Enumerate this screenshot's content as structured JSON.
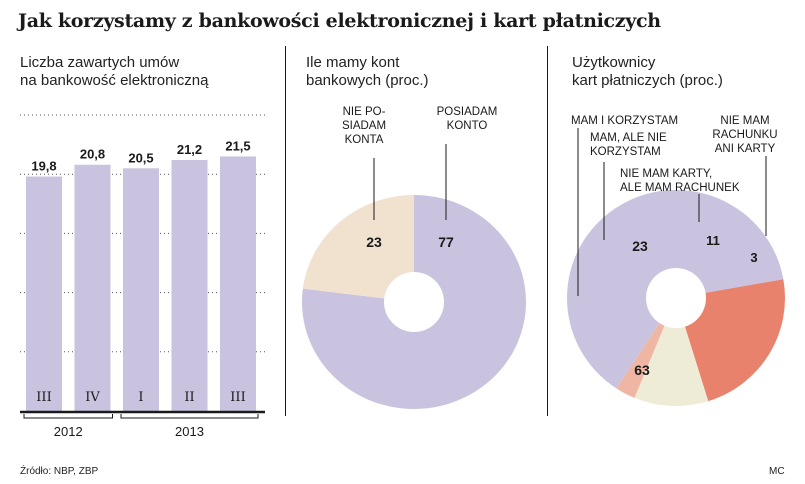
{
  "title": "Jak korzystamy z bankowości elektronicznej i kart płatniczych",
  "panels": {
    "p1": {
      "line1": "Liczba zawartych umów",
      "line2": "na bankowość elektroniczną"
    },
    "p2": {
      "line1": "Ile mamy kont",
      "line2": "bankowych (proc.)"
    },
    "p3": {
      "line1": "Użytkownicy",
      "line2": "kart płatniczych (proc.)"
    }
  },
  "footer": {
    "source": "Źródło: NBP, ZBP",
    "credit": "MC"
  },
  "chart_data": [
    {
      "type": "bar",
      "categories": [
        "III",
        "IV",
        "I",
        "II",
        "III"
      ],
      "values": [
        19.8,
        20.8,
        20.5,
        21.2,
        21.5
      ],
      "value_labels": [
        "19,8",
        "20,8",
        "20,5",
        "21,2",
        "21,5"
      ],
      "groups": [
        {
          "label": "2012",
          "categories": [
            "III",
            "IV"
          ]
        },
        {
          "label": "2013",
          "categories": [
            "I",
            "II",
            "III"
          ]
        }
      ],
      "ylim": [
        0,
        25
      ],
      "grid": "dotted horizontal",
      "colors": {
        "bar": "#c9c3df",
        "axis": "#1a1a1a"
      }
    },
    {
      "type": "pie",
      "donut": true,
      "slices": [
        {
          "value": 77,
          "label": "77",
          "category": "POSIADAM KONTO",
          "color": "#c9c3df"
        },
        {
          "value": 23,
          "label": "23",
          "category": "NIE POSIADAM KONTA",
          "color": "#f1e2d0"
        }
      ],
      "category_lines": [
        [
          "NIE PO-",
          "SIADAM",
          "KONTA"
        ],
        [
          "POSIADAM",
          "KONTO"
        ]
      ]
    },
    {
      "type": "pie",
      "donut": true,
      "slices": [
        {
          "value": 63,
          "label": "63",
          "category": "MAM I KORZYSTAM",
          "color": "#c9c3df"
        },
        {
          "value": 23,
          "label": "23",
          "category": "MAM, ALE NIE KORZYSTAM",
          "color": "#e8826c"
        },
        {
          "value": 11,
          "label": "11",
          "category": "NIE MAM KARTY, ALE MAM RACHUNEK",
          "color": "#eeebd6"
        },
        {
          "value": 3,
          "label": "3",
          "category": "NIE MAM RACHUNKU ANI KARTY",
          "color": "#f0b6a4"
        }
      ],
      "category_lines": [
        [
          "MAM I KORZYSTAM"
        ],
        [
          "MAM, ALE NIE",
          "KORZYSTAM"
        ],
        [
          "NIE MAM KARTY,",
          "ALE MAM RACHUNEK"
        ],
        [
          "NIE MAM",
          "RACHUNKU",
          "ANI KARTY"
        ]
      ]
    }
  ]
}
